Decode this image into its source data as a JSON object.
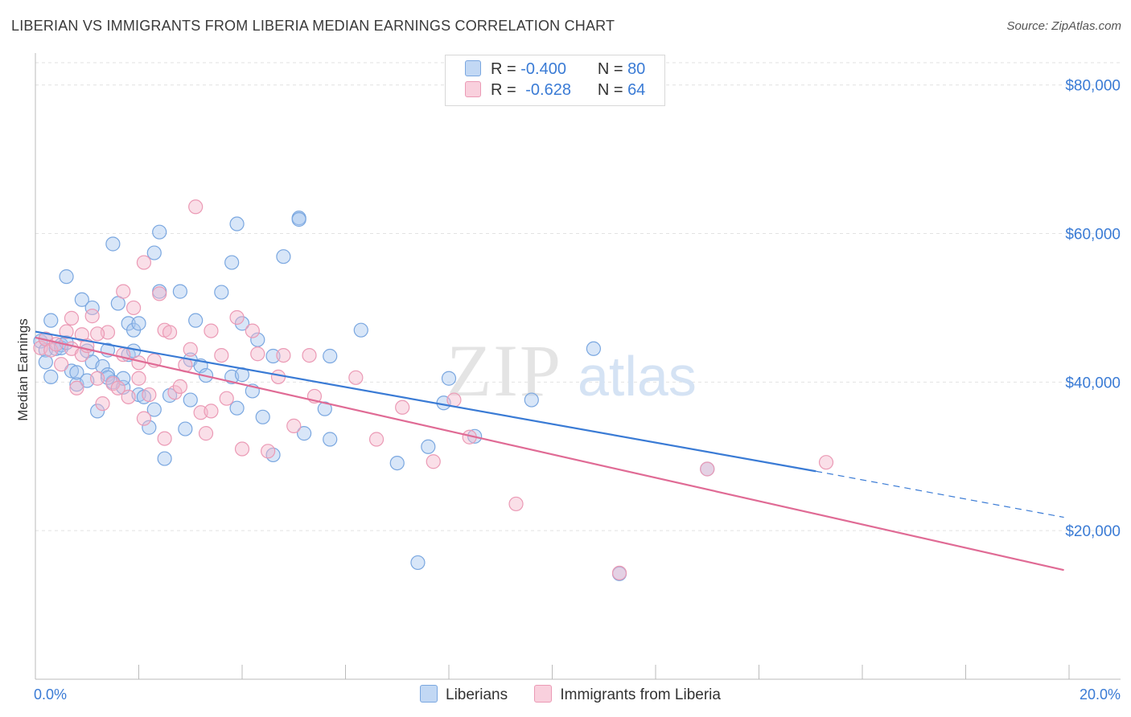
{
  "title": "LIBERIAN VS IMMIGRANTS FROM LIBERIA MEDIAN EARNINGS CORRELATION CHART",
  "source": "Source: ZipAtlas.com",
  "watermark": {
    "zip": "ZIP",
    "atlas": "atlas"
  },
  "legend": {
    "r_label": "R =",
    "n_label": "N =",
    "rows": [
      {
        "r": "-0.400",
        "n": "80",
        "color": "#a8c8f0"
      },
      {
        "r": "-0.628",
        "n": "64",
        "color": "#f5b8cc"
      }
    ]
  },
  "bottom_legend": [
    "Liberians",
    "Immigrants from Liberia"
  ],
  "chart_data": {
    "type": "scatter",
    "title": "LIBERIAN VS IMMIGRANTS FROM LIBERIA MEDIAN EARNINGS CORRELATION CHART",
    "xlabel": "",
    "ylabel": "Median Earnings",
    "x_tick_labels": [
      "0.0%",
      "20.0%"
    ],
    "y_tick_labels": [
      "$20,000",
      "$40,000",
      "$60,000",
      "$80,000"
    ],
    "y_ticks": [
      20000,
      40000,
      60000,
      80000
    ],
    "xlim": [
      0,
      20
    ],
    "ylim": [
      0,
      83000
    ],
    "grid": true,
    "colors": {
      "Liberians": "#3a7bd5",
      "Immigrants from Liberia": "#e06b95"
    },
    "series": [
      {
        "name": "Liberians",
        "trend": {
          "x_start": 0,
          "y_start": 46800,
          "x_solid_end": 15.1,
          "y_solid_end": 28000,
          "x_dash_end": 19.9,
          "y_dash_end": 21800
        },
        "points": [
          [
            0.1,
            45500
          ],
          [
            0.2,
            44300
          ],
          [
            0.2,
            42700
          ],
          [
            0.3,
            48300
          ],
          [
            0.3,
            40700
          ],
          [
            0.4,
            44500
          ],
          [
            0.5,
            45000
          ],
          [
            0.6,
            54200
          ],
          [
            0.7,
            41500
          ],
          [
            0.8,
            39700
          ],
          [
            0.8,
            41300
          ],
          [
            0.9,
            51100
          ],
          [
            1.0,
            44200
          ],
          [
            1.1,
            42700
          ],
          [
            1.1,
            50000
          ],
          [
            1.2,
            36100
          ],
          [
            1.3,
            42100
          ],
          [
            1.4,
            44300
          ],
          [
            1.4,
            41000
          ],
          [
            1.5,
            40000
          ],
          [
            1.5,
            58600
          ],
          [
            1.6,
            50600
          ],
          [
            1.7,
            39300
          ],
          [
            1.7,
            40500
          ],
          [
            1.8,
            47900
          ],
          [
            1.8,
            43700
          ],
          [
            1.9,
            44200
          ],
          [
            1.9,
            47000
          ],
          [
            2.0,
            47900
          ],
          [
            2.0,
            38300
          ],
          [
            2.1,
            38000
          ],
          [
            2.2,
            33900
          ],
          [
            2.3,
            57400
          ],
          [
            2.3,
            36300
          ],
          [
            2.4,
            60200
          ],
          [
            2.4,
            52200
          ],
          [
            2.5,
            29700
          ],
          [
            2.6,
            38200
          ],
          [
            2.8,
            52200
          ],
          [
            2.9,
            33700
          ],
          [
            3.0,
            37600
          ],
          [
            3.0,
            43000
          ],
          [
            3.1,
            48300
          ],
          [
            3.2,
            42200
          ],
          [
            3.3,
            40900
          ],
          [
            3.6,
            52100
          ],
          [
            3.8,
            40700
          ],
          [
            3.8,
            56100
          ],
          [
            3.9,
            61300
          ],
          [
            3.9,
            36500
          ],
          [
            4.0,
            41000
          ],
          [
            4.0,
            47900
          ],
          [
            4.2,
            38800
          ],
          [
            4.3,
            45700
          ],
          [
            4.4,
            35300
          ],
          [
            4.6,
            43500
          ],
          [
            4.6,
            30200
          ],
          [
            4.8,
            56900
          ],
          [
            5.1,
            62100
          ],
          [
            5.1,
            61900
          ],
          [
            5.2,
            33100
          ],
          [
            5.6,
            36400
          ],
          [
            5.7,
            32300
          ],
          [
            5.7,
            43500
          ],
          [
            6.3,
            47000
          ],
          [
            7.0,
            29100
          ],
          [
            7.4,
            15700
          ],
          [
            7.6,
            31300
          ],
          [
            7.9,
            37200
          ],
          [
            8.0,
            40500
          ],
          [
            8.5,
            32700
          ],
          [
            9.6,
            37600
          ],
          [
            10.8,
            44500
          ],
          [
            13.0,
            28300
          ],
          [
            11.3,
            14200
          ],
          [
            0.2,
            45800
          ],
          [
            0.5,
            44600
          ],
          [
            0.6,
            45300
          ],
          [
            1.0,
            40200
          ],
          [
            1.4,
            40600
          ]
        ]
      },
      {
        "name": "Immigrants from Liberia",
        "trend": {
          "x_start": 0,
          "y_start": 46000,
          "x_end": 19.9,
          "y_end": 14700
        },
        "points": [
          [
            0.1,
            44600
          ],
          [
            0.2,
            45800
          ],
          [
            0.3,
            44300
          ],
          [
            0.4,
            45100
          ],
          [
            0.5,
            42400
          ],
          [
            0.6,
            46800
          ],
          [
            0.7,
            44500
          ],
          [
            0.7,
            48600
          ],
          [
            0.8,
            39200
          ],
          [
            0.9,
            43700
          ],
          [
            1.0,
            44900
          ],
          [
            1.1,
            48900
          ],
          [
            1.2,
            40500
          ],
          [
            1.3,
            37100
          ],
          [
            1.4,
            46700
          ],
          [
            1.5,
            39800
          ],
          [
            1.6,
            39200
          ],
          [
            1.7,
            43700
          ],
          [
            1.7,
            52200
          ],
          [
            1.8,
            38000
          ],
          [
            1.9,
            50000
          ],
          [
            2.0,
            42600
          ],
          [
            2.1,
            35100
          ],
          [
            2.1,
            56100
          ],
          [
            2.2,
            38300
          ],
          [
            2.3,
            42900
          ],
          [
            2.4,
            51900
          ],
          [
            2.5,
            47000
          ],
          [
            2.5,
            32400
          ],
          [
            2.6,
            46700
          ],
          [
            2.7,
            38600
          ],
          [
            2.8,
            39400
          ],
          [
            2.9,
            42300
          ],
          [
            3.0,
            44400
          ],
          [
            3.1,
            63600
          ],
          [
            3.2,
            35900
          ],
          [
            3.3,
            33100
          ],
          [
            3.4,
            36100
          ],
          [
            3.4,
            46900
          ],
          [
            3.6,
            43600
          ],
          [
            3.7,
            37800
          ],
          [
            3.9,
            48700
          ],
          [
            4.0,
            31000
          ],
          [
            4.2,
            46900
          ],
          [
            4.3,
            43800
          ],
          [
            4.5,
            30700
          ],
          [
            4.7,
            40700
          ],
          [
            4.8,
            43600
          ],
          [
            5.0,
            34100
          ],
          [
            5.3,
            43600
          ],
          [
            5.4,
            38100
          ],
          [
            6.2,
            40600
          ],
          [
            6.6,
            32300
          ],
          [
            7.1,
            36600
          ],
          [
            7.7,
            29300
          ],
          [
            8.1,
            37600
          ],
          [
            8.4,
            32600
          ],
          [
            9.3,
            23600
          ],
          [
            11.3,
            14300
          ],
          [
            13.0,
            28300
          ],
          [
            15.3,
            29200
          ],
          [
            0.9,
            46400
          ],
          [
            1.2,
            46500
          ],
          [
            2.0,
            40500
          ]
        ]
      }
    ]
  }
}
